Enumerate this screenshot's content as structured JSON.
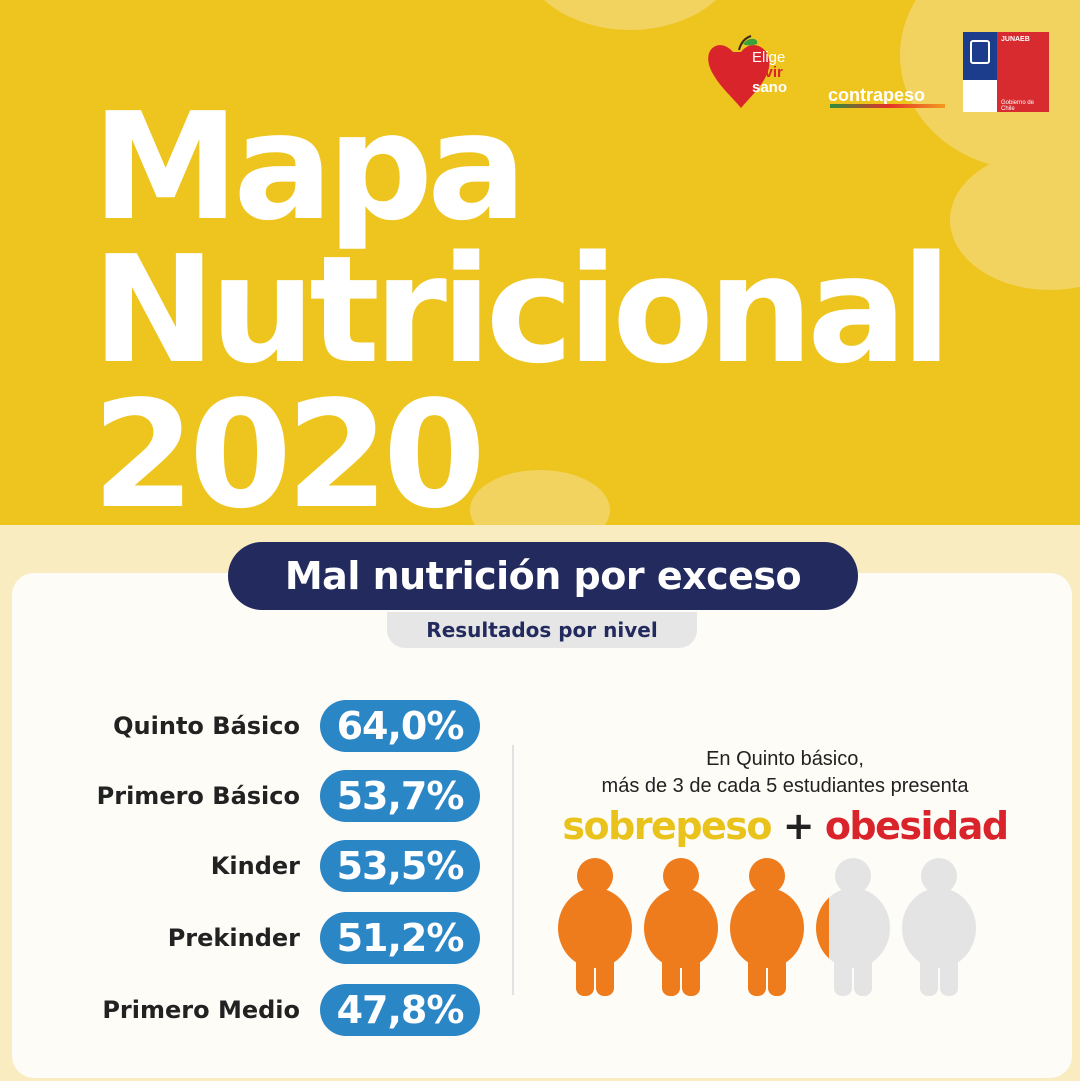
{
  "header": {
    "title_line1": "Mapa",
    "title_line2": "Nutricional",
    "title_line3": "2020"
  },
  "logos": {
    "elige_vivir_sano": [
      "Elige",
      "vivir",
      "sano"
    ],
    "contrapeso": "contrapeso",
    "gobierno": {
      "agency": "JUNAEB",
      "footer": "Gobierno de Chile"
    }
  },
  "section": {
    "title": "Mal nutrición por exceso",
    "subtitle": "Resultados por nivel"
  },
  "results": [
    {
      "level": "Quinto Básico",
      "value": "64,0%"
    },
    {
      "level": "Primero Básico",
      "value": "53,7%"
    },
    {
      "level": "Kinder",
      "value": "53,5%"
    },
    {
      "level": "Prekinder",
      "value": "51,2%"
    },
    {
      "level": "Primero Medio",
      "value": "47,8%"
    }
  ],
  "highlight": {
    "line1": "En Quinto básico,",
    "line2": "más de 3 de cada 5 estudiantes presenta",
    "word1": "sobrepeso",
    "plus": "+",
    "word2": "obesidad",
    "figures_total": 5,
    "figures_filled": 3.2
  },
  "colors": {
    "background_top": "#eec51f",
    "title_pill": "#232a5e",
    "value_pill": "#2b86c6",
    "figure_filled": "#ef7c1c",
    "figure_empty": "#e4e4e4",
    "sobrepeso": "#e9c31c",
    "obesidad": "#d9242b"
  }
}
